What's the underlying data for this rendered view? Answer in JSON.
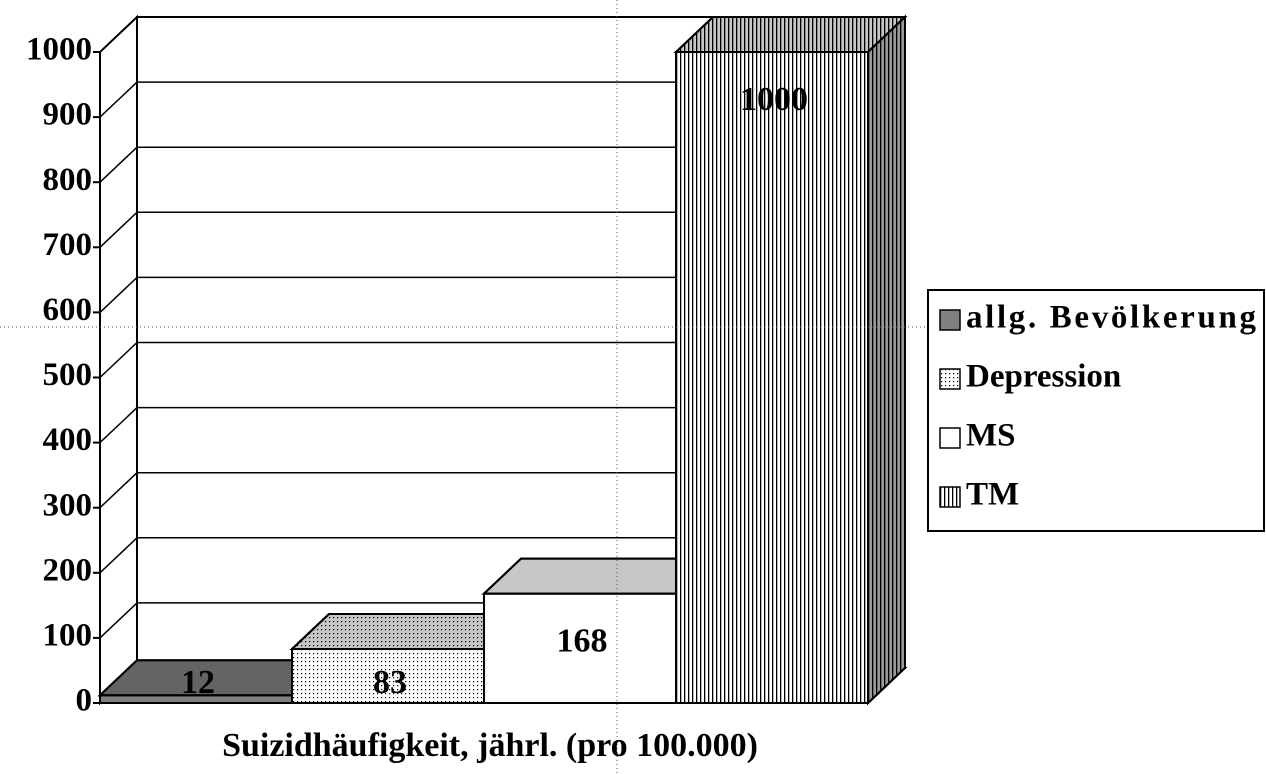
{
  "chart_data": {
    "type": "bar3d",
    "x_label": "Suizidhäufigkeit, jährl. (pro 100.000)",
    "series": [
      {
        "name": "allg. Bevölkerung",
        "color": "#808080",
        "pattern": "solid",
        "values": [
          12
        ]
      },
      {
        "name": "Depression",
        "color": "#ffffff",
        "pattern": "dots",
        "values": [
          83
        ]
      },
      {
        "name": "MS",
        "color": "#ffffff",
        "pattern": "solid",
        "values": [
          168
        ]
      },
      {
        "name": "TM",
        "color": "#ffffff",
        "pattern": "vertical-lines",
        "values": [
          1000
        ]
      }
    ],
    "ylim": [
      0,
      1000
    ],
    "yticks": [
      0,
      100,
      200,
      300,
      400,
      500,
      600,
      700,
      800,
      900,
      1000
    ],
    "grid": true,
    "legend": "right"
  }
}
